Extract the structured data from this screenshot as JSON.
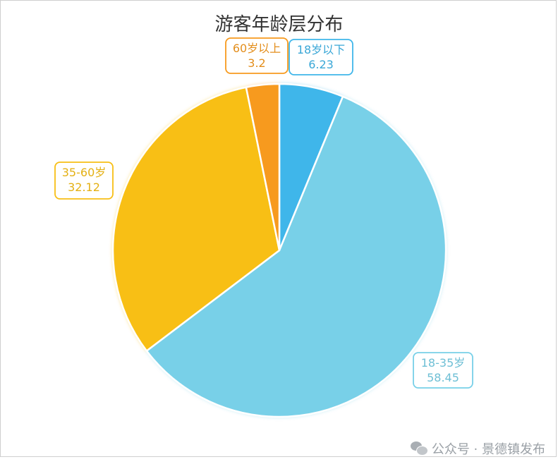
{
  "chart_data": {
    "type": "pie",
    "title": "游客年龄层分布",
    "slices": [
      {
        "label": "18岁以下",
        "value": 6.23,
        "value_text": "6.23",
        "color": "#3FB6EA"
      },
      {
        "label": "18-35岁",
        "value": 58.45,
        "value_text": "58.45",
        "color": "#78D0E8"
      },
      {
        "label": "35-60岁",
        "value": 32.12,
        "value_text": "32.12",
        "color": "#F8BF15"
      },
      {
        "label": "60岁以上",
        "value": 3.2,
        "value_text": "3.2",
        "color": "#F79A1E"
      }
    ],
    "start_angle": "12 o'clock",
    "direction": "clockwise"
  },
  "watermark": {
    "icon": "wechat-icon",
    "text": "公众号 · 景德镇发布"
  }
}
